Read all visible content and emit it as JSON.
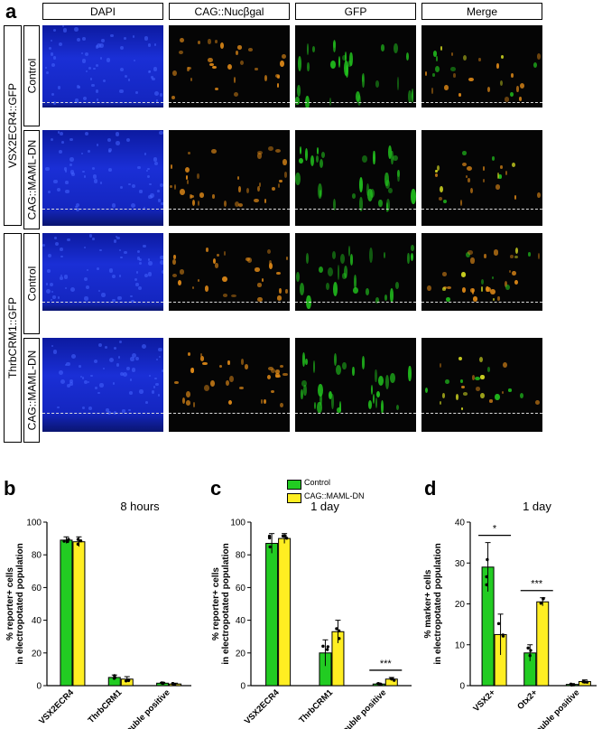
{
  "panel_a": {
    "letter": "a",
    "columns": [
      "DAPI",
      "CAG::Nucβgal",
      "GFP",
      "Merge"
    ],
    "groups": [
      "VSX2ECR4::GFP",
      "ThrbCRM1::GFP"
    ],
    "conditions": [
      "Control",
      "CAG::MAML-DN",
      "Control",
      "CAG::MAML-DN"
    ]
  },
  "colors": {
    "dapi": "#1a2fd6",
    "nucbgal": "#e08a18",
    "gfp": "#22c31e",
    "control": "#22cc22",
    "mamldn": "#ffee22"
  },
  "legend": {
    "control": "Control",
    "mamldn": "CAG::MAML-DN"
  },
  "chart_data": [
    {
      "panel": "b",
      "type": "bar",
      "title": "8 hours",
      "ylabel": "% reporter+ cells in electropotated population",
      "ylim": [
        0,
        100
      ],
      "yticks": [
        "0",
        "20",
        "40",
        "60",
        "80",
        "100"
      ],
      "categories": [
        "VSX2ECR4",
        "ThrbCRM1",
        "Double positive"
      ],
      "series": [
        {
          "name": "Control",
          "values": [
            89,
            5,
            1.5
          ],
          "errors": [
            2,
            1.5,
            0.5
          ]
        },
        {
          "name": "CAG::MAML-DN",
          "values": [
            88,
            4,
            1
          ],
          "errors": [
            3,
            1.5,
            0.5
          ]
        }
      ],
      "significance": []
    },
    {
      "panel": "c",
      "type": "bar",
      "title": "1 day",
      "ylabel": "% reporter+ cells in electropotated population",
      "ylim": [
        0,
        100
      ],
      "yticks": [
        "0",
        "20",
        "40",
        "60",
        "80",
        "100"
      ],
      "categories": [
        "VSX2ECR4",
        "ThrbCRM1",
        "Double positive"
      ],
      "series": [
        {
          "name": "Control",
          "values": [
            87,
            20,
            1
          ],
          "errors": [
            6,
            8,
            0.5
          ]
        },
        {
          "name": "CAG::MAML-DN",
          "values": [
            90,
            33,
            4
          ],
          "errors": [
            3,
            7,
            1
          ]
        }
      ],
      "significance": [
        {
          "category": 2,
          "label": "***"
        }
      ]
    },
    {
      "panel": "d",
      "type": "bar",
      "title": "1 day",
      "ylabel": "% marker+ cells in electropotated population",
      "ylim": [
        0,
        40
      ],
      "yticks": [
        "0",
        "10",
        "20",
        "30",
        "40"
      ],
      "categories": [
        "VSX2+",
        "Otx2+",
        "Double positive"
      ],
      "series": [
        {
          "name": "Control",
          "values": [
            29,
            8,
            0.3
          ],
          "errors": [
            6,
            2,
            0.2
          ]
        },
        {
          "name": "CAG::MAML-DN",
          "values": [
            12.5,
            20.5,
            1
          ],
          "errors": [
            5,
            1,
            0.4
          ]
        }
      ],
      "significance": [
        {
          "category": 0,
          "label": "*"
        },
        {
          "category": 1,
          "label": "***"
        }
      ]
    }
  ]
}
